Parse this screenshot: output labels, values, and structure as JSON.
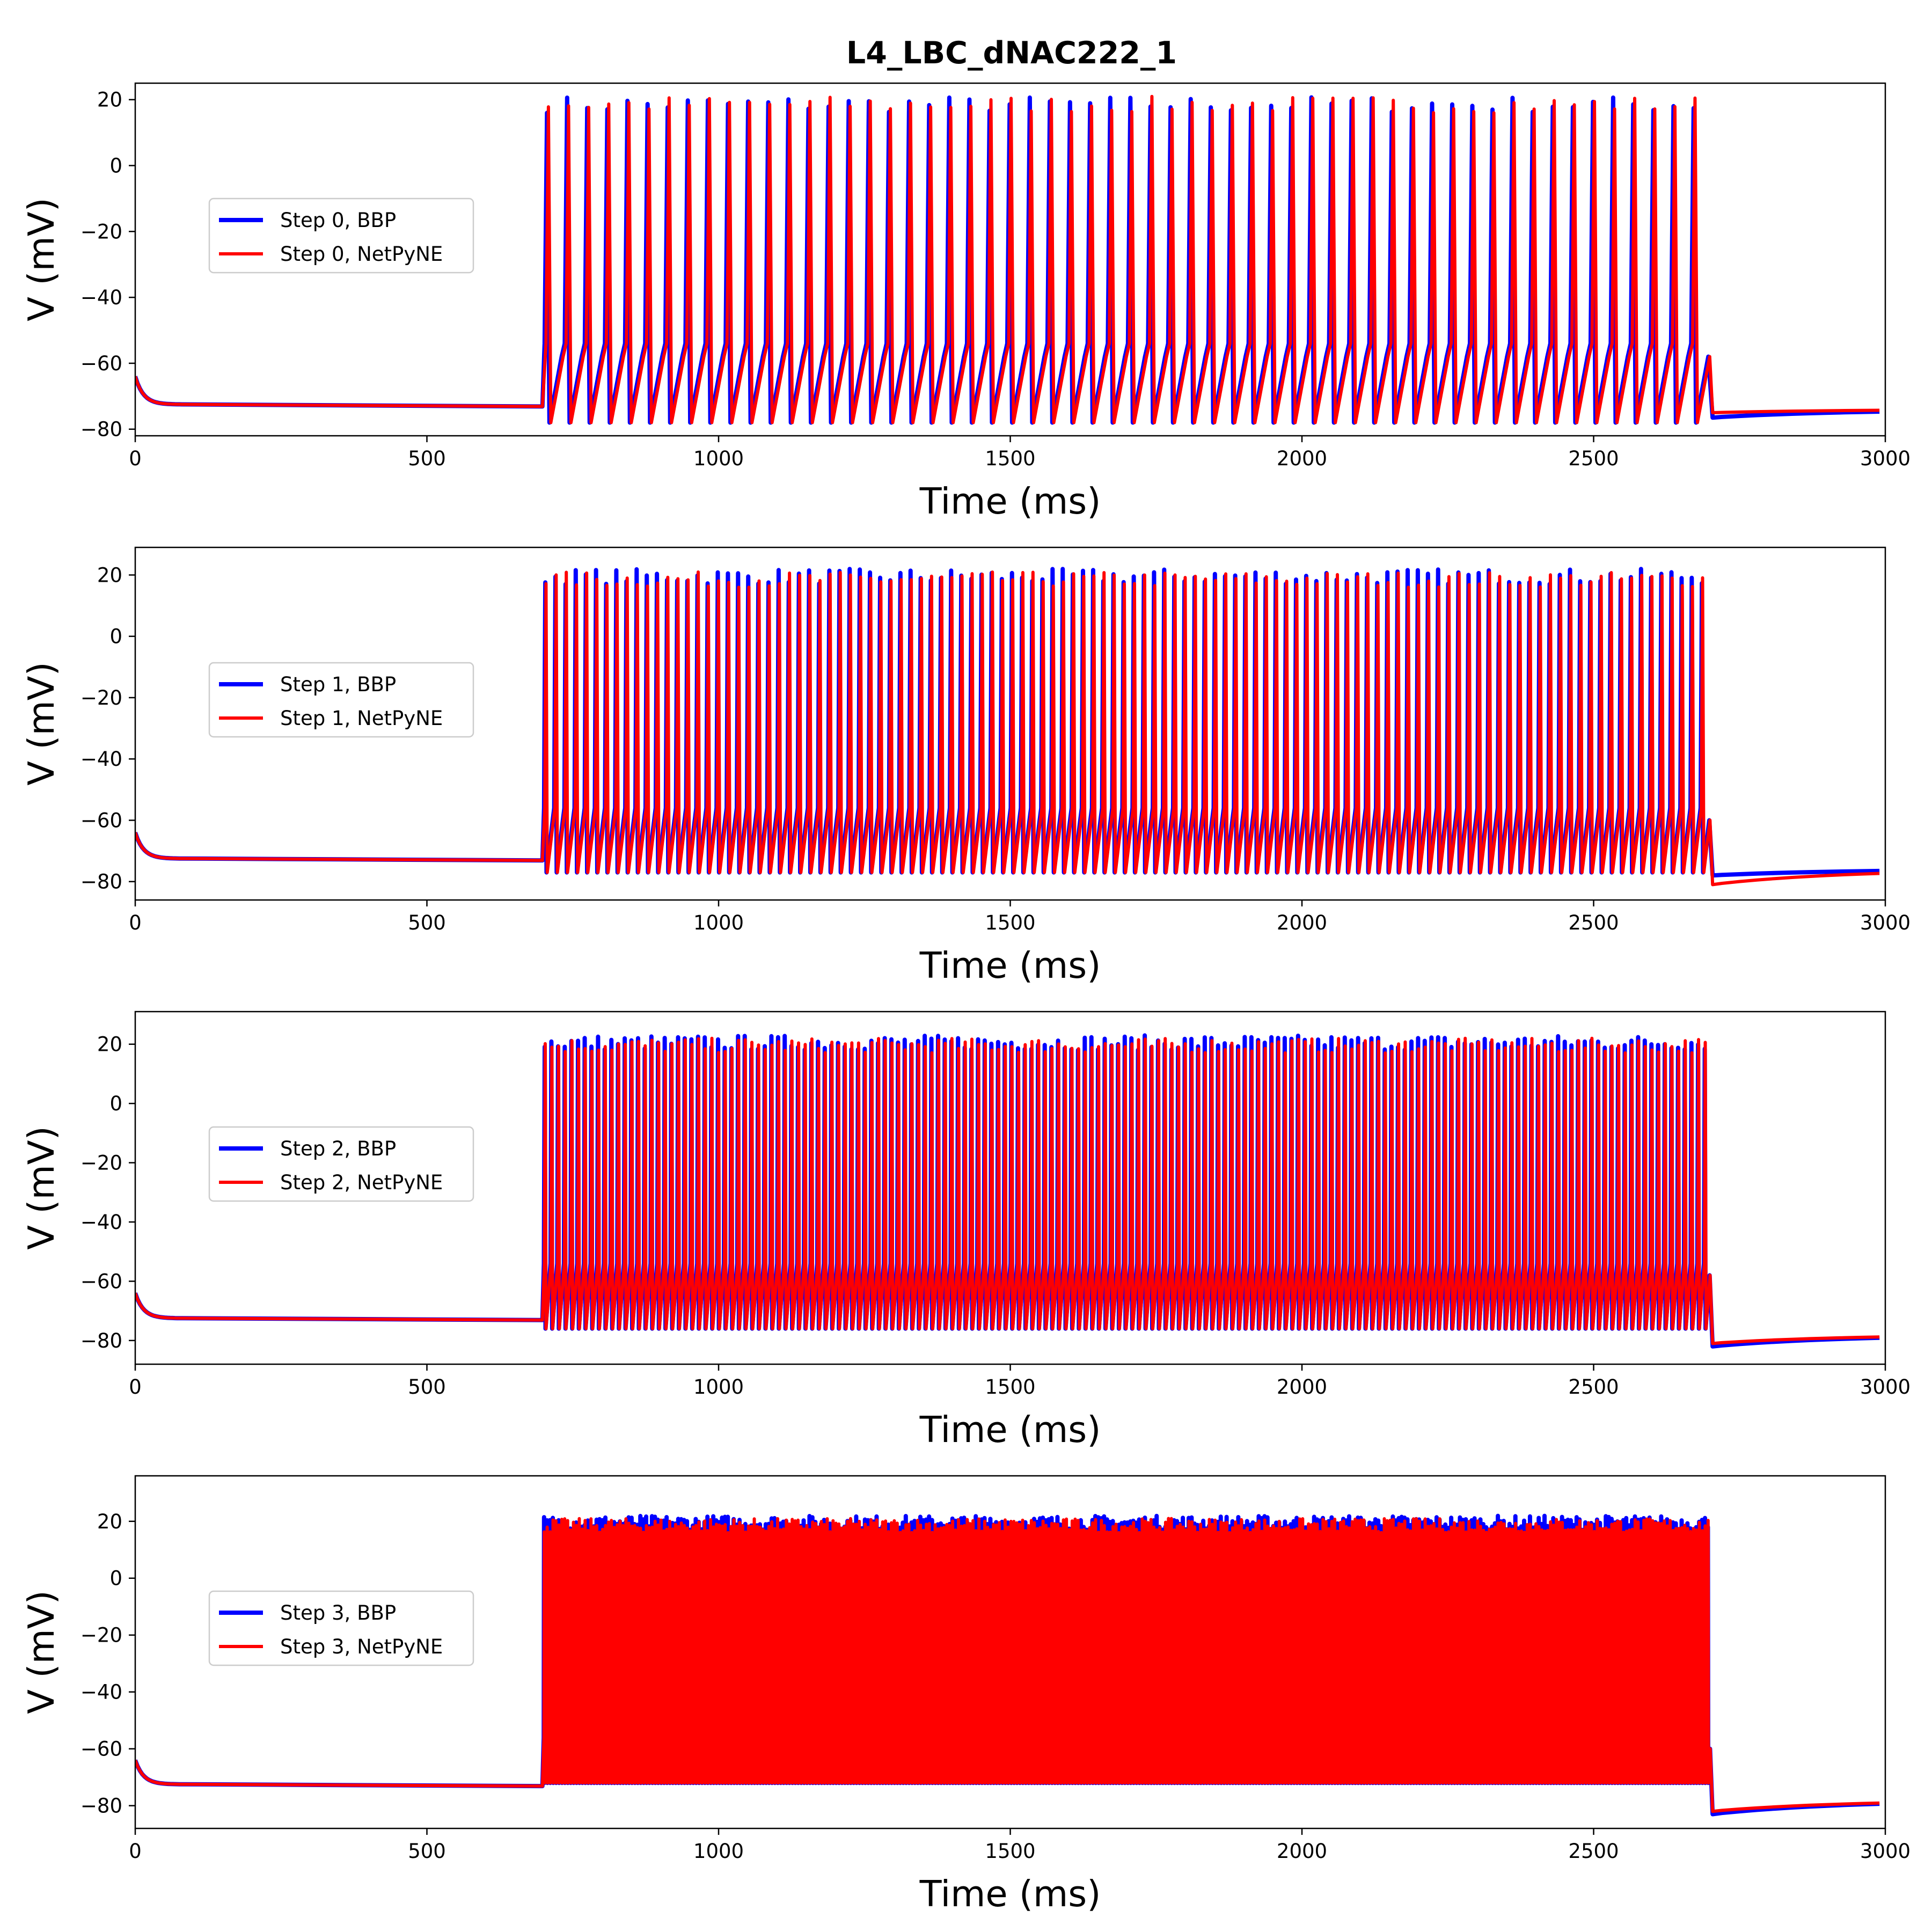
{
  "figure_title": "L4_LBC_dNAC222_1",
  "colors": {
    "bbp": "#0000ff",
    "netpyne": "#ff0000"
  },
  "chart_data": [
    {
      "type": "line",
      "xlabel": "Time (ms)",
      "ylabel": "V (mV)",
      "xlim": [
        0,
        3000
      ],
      "ylim": [
        -82,
        25
      ],
      "xticks": [
        0,
        500,
        1000,
        1500,
        2000,
        2500,
        3000
      ],
      "yticks": [
        -80,
        -60,
        -40,
        -20,
        0,
        20
      ],
      "legend": "center-left",
      "stimulus": {
        "start": 700,
        "end": 2700
      },
      "rest_potential": -72.5,
      "initial_potential": -64,
      "post_stim_potential": {
        "bbp": -76.5,
        "netpyne": -75
      },
      "final_potential": -74,
      "series": [
        {
          "name": "Step 0, BBP",
          "color": "#0000ff",
          "spike_count": 58,
          "spike_peak": 20,
          "trough": -78,
          "isi_plateau": -58
        },
        {
          "name": "Step 0, NetPyNE",
          "color": "#ff0000",
          "spike_count": 58,
          "spike_peak": 20,
          "trough": -78,
          "isi_plateau": -58
        }
      ]
    },
    {
      "type": "line",
      "xlabel": "Time (ms)",
      "ylabel": "V (mV)",
      "xlim": [
        0,
        3000
      ],
      "ylim": [
        -86,
        29
      ],
      "xticks": [
        0,
        500,
        1000,
        1500,
        2000,
        2500,
        3000
      ],
      "yticks": [
        -80,
        -60,
        -40,
        -20,
        0,
        20
      ],
      "legend": "center-left",
      "stimulus": {
        "start": 700,
        "end": 2700
      },
      "rest_potential": -72.5,
      "initial_potential": -64,
      "post_stim_potential": {
        "bbp": -78,
        "netpyne": -81
      },
      "final_potential": -76,
      "series": [
        {
          "name": "Step 1, BBP",
          "color": "#0000ff",
          "spike_count": 115,
          "spike_peak": 21,
          "trough": -77,
          "isi_plateau": -60
        },
        {
          "name": "Step 1, NetPyNE",
          "color": "#ff0000",
          "spike_count": 115,
          "spike_peak": 20,
          "trough": -77,
          "isi_plateau": -60
        }
      ]
    },
    {
      "type": "line",
      "xlabel": "Time (ms)",
      "ylabel": "V (mV)",
      "xlim": [
        0,
        3000
      ],
      "ylim": [
        -88,
        31
      ],
      "xticks": [
        0,
        500,
        1000,
        1500,
        2000,
        2500,
        3000
      ],
      "yticks": [
        -80,
        -60,
        -40,
        -20,
        0,
        20
      ],
      "legend": "center-left",
      "stimulus": {
        "start": 700,
        "end": 2700
      },
      "rest_potential": -72.5,
      "initial_potential": -64,
      "post_stim_potential": {
        "bbp": -82,
        "netpyne": -81
      },
      "final_potential": -78,
      "series": [
        {
          "name": "Step 2, BBP",
          "color": "#0000ff",
          "spike_count": 175,
          "spike_peak": 22,
          "trough": -76,
          "isi_plateau": -58
        },
        {
          "name": "Step 2, NetPyNE",
          "color": "#ff0000",
          "spike_count": 175,
          "spike_peak": 21,
          "trough": -76,
          "isi_plateau": -58
        }
      ]
    },
    {
      "type": "line",
      "xlabel": "Time (ms)",
      "ylabel": "V (mV)",
      "xlim": [
        0,
        3000
      ],
      "ylim": [
        -88,
        36
      ],
      "xticks": [
        0,
        500,
        1000,
        1500,
        2000,
        2500,
        3000
      ],
      "yticks": [
        -80,
        -60,
        -40,
        -20,
        0,
        20
      ],
      "legend": "center-left",
      "stimulus": {
        "start": 700,
        "end": 2700
      },
      "rest_potential": -72.5,
      "initial_potential": -64,
      "post_stim_potential": {
        "bbp": -83,
        "netpyne": -82
      },
      "final_potential": -78,
      "series": [
        {
          "name": "Step 3, BBP",
          "color": "#0000ff",
          "spike_count": 400,
          "spike_peak": 21,
          "trough": -72,
          "isi_plateau": -60
        },
        {
          "name": "Step 3, NetPyNE",
          "color": "#ff0000",
          "spike_count": 400,
          "spike_peak": 20,
          "trough": -72,
          "isi_plateau": -60
        }
      ]
    }
  ]
}
